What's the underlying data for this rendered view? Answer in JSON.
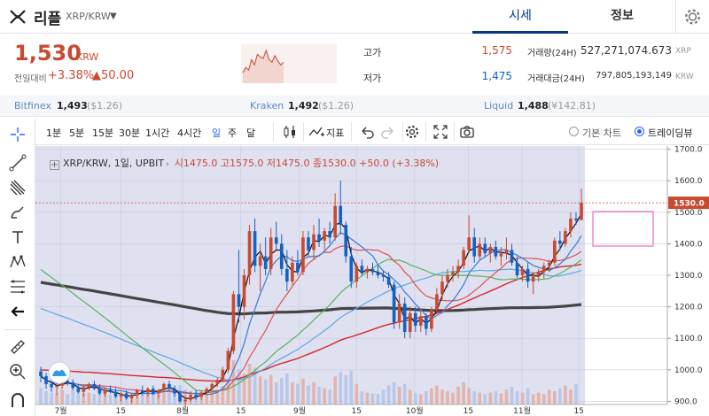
{
  "header": {
    "coin_name": "리플",
    "pair": "XRP/KRW",
    "tabs": [
      {
        "label": "시세",
        "active": true
      },
      {
        "label": "정보",
        "active": false
      }
    ]
  },
  "price": {
    "current": "1,530",
    "unit": "KRW",
    "change_label": "전일대비",
    "change_pct": "+3.38%",
    "change_abs": "▲50.00",
    "mini_chart": [
      1490,
      1510,
      1500,
      1540,
      1520,
      1560,
      1550,
      1545,
      1575,
      1540,
      1530,
      1555,
      1535,
      1520,
      1530
    ]
  },
  "stats": {
    "high_label": "고가",
    "high": "1,575",
    "low_label": "저가",
    "low": "1,475",
    "volume_label": "거래량(24H)",
    "volume": "527,271,074.673",
    "volume_unit": "XRP",
    "amount_label": "거래대금(24H)",
    "amount": "797,805,193,149",
    "amount_unit": "KRW"
  },
  "exchanges": [
    {
      "name": "Bitfinex",
      "price": "1,493",
      "usd": "($1.26)"
    },
    {
      "name": "Kraken",
      "price": "1,492",
      "usd": "($1.26)"
    },
    {
      "name": "Liquid",
      "price": "1,488",
      "usd": "(¥142.81)"
    }
  ],
  "toolbar": {
    "intervals": [
      "1분",
      "5분",
      "15분",
      "30분",
      "1시간",
      "4시간",
      "일",
      "주",
      "달"
    ],
    "selected_interval": "일",
    "indicator_label": "지표",
    "chart_modes": [
      "기본 차트",
      "트레이딩뷰"
    ],
    "selected_mode": "트레이딩뷰"
  },
  "chart_legend": {
    "symbol": "XRP/KRW, 1일, UPBIT",
    "ohlc": "시1475.0 고1575.0 저1475.0 종1530.0 +50.0 (+3.38%)"
  },
  "colors": {
    "up": "#c84a31",
    "down": "#1261c4",
    "accent": "#2962ff",
    "nav_active": "#093687"
  },
  "chart_data": {
    "type": "candlestick",
    "y_ticks": [
      "1700.0",
      "1600.0",
      "1500.0",
      "1400.0",
      "1300.0",
      "1200.0",
      "1100.0",
      "1000.0",
      "900.0"
    ],
    "last_price_label": "1530.0",
    "x_ticks": [
      "7월",
      "15",
      "8월",
      "15",
      "9월",
      "15",
      "10월",
      "15",
      "11월",
      "15"
    ],
    "y_range": [
      890,
      1710
    ],
    "ohlc": [
      [
        995,
        1010,
        960,
        980
      ],
      [
        980,
        990,
        940,
        955
      ],
      [
        955,
        970,
        930,
        945
      ],
      [
        945,
        960,
        920,
        950
      ],
      [
        950,
        975,
        940,
        965
      ],
      [
        965,
        980,
        950,
        960
      ],
      [
        960,
        970,
        935,
        942
      ],
      [
        942,
        955,
        925,
        930
      ],
      [
        930,
        950,
        915,
        945
      ],
      [
        945,
        960,
        935,
        955
      ],
      [
        955,
        965,
        935,
        940
      ],
      [
        940,
        955,
        920,
        925
      ],
      [
        925,
        945,
        915,
        938
      ],
      [
        938,
        950,
        925,
        930
      ],
      [
        930,
        942,
        910,
        915
      ],
      [
        915,
        930,
        900,
        925
      ],
      [
        925,
        935,
        905,
        910
      ],
      [
        910,
        925,
        895,
        920
      ],
      [
        920,
        940,
        910,
        935
      ],
      [
        935,
        950,
        920,
        928
      ],
      [
        928,
        945,
        915,
        940
      ],
      [
        940,
        950,
        920,
        925
      ],
      [
        925,
        940,
        910,
        935
      ],
      [
        935,
        960,
        930,
        955
      ],
      [
        955,
        965,
        935,
        940
      ],
      [
        940,
        950,
        915,
        925
      ],
      [
        925,
        930,
        895,
        900
      ],
      [
        900,
        915,
        880,
        905
      ],
      [
        905,
        930,
        900,
        920
      ],
      [
        920,
        935,
        905,
        915
      ],
      [
        915,
        935,
        905,
        928
      ],
      [
        928,
        945,
        920,
        940
      ],
      [
        940,
        960,
        935,
        955
      ],
      [
        955,
        975,
        945,
        968
      ],
      [
        968,
        1010,
        960,
        1000
      ],
      [
        1000,
        1070,
        990,
        1060
      ],
      [
        1060,
        1250,
        1050,
        1240
      ],
      [
        1240,
        1380,
        1150,
        1200
      ],
      [
        1200,
        1320,
        1160,
        1300
      ],
      [
        1300,
        1460,
        1270,
        1440
      ],
      [
        1440,
        1480,
        1310,
        1330
      ],
      [
        1330,
        1400,
        1250,
        1360
      ],
      [
        1360,
        1420,
        1300,
        1320
      ],
      [
        1320,
        1450,
        1300,
        1420
      ],
      [
        1420,
        1470,
        1380,
        1400
      ],
      [
        1400,
        1430,
        1300,
        1320
      ],
      [
        1320,
        1380,
        1250,
        1280
      ],
      [
        1280,
        1360,
        1270,
        1340
      ],
      [
        1340,
        1380,
        1300,
        1310
      ],
      [
        1310,
        1440,
        1300,
        1420
      ],
      [
        1420,
        1440,
        1360,
        1380
      ],
      [
        1380,
        1460,
        1350,
        1430
      ],
      [
        1430,
        1480,
        1390,
        1410
      ],
      [
        1410,
        1450,
        1380,
        1440
      ],
      [
        1440,
        1470,
        1400,
        1420
      ],
      [
        1420,
        1560,
        1410,
        1520
      ],
      [
        1520,
        1600,
        1430,
        1460
      ],
      [
        1460,
        1470,
        1340,
        1360
      ],
      [
        1360,
        1390,
        1260,
        1280
      ],
      [
        1280,
        1340,
        1260,
        1330
      ],
      [
        1330,
        1350,
        1300,
        1310
      ],
      [
        1310,
        1330,
        1290,
        1320
      ],
      [
        1320,
        1340,
        1300,
        1310
      ],
      [
        1310,
        1330,
        1290,
        1300
      ],
      [
        1300,
        1315,
        1280,
        1295
      ],
      [
        1295,
        1310,
        1260,
        1270
      ],
      [
        1270,
        1280,
        1130,
        1150
      ],
      [
        1150,
        1240,
        1130,
        1210
      ],
      [
        1210,
        1230,
        1100,
        1120
      ],
      [
        1120,
        1200,
        1100,
        1180
      ],
      [
        1180,
        1200,
        1120,
        1140
      ],
      [
        1140,
        1190,
        1120,
        1170
      ],
      [
        1170,
        1180,
        1110,
        1130
      ],
      [
        1130,
        1200,
        1120,
        1190
      ],
      [
        1190,
        1260,
        1180,
        1240
      ],
      [
        1240,
        1300,
        1220,
        1280
      ],
      [
        1280,
        1320,
        1260,
        1300
      ],
      [
        1300,
        1330,
        1280,
        1310
      ],
      [
        1310,
        1350,
        1290,
        1330
      ],
      [
        1330,
        1390,
        1320,
        1380
      ],
      [
        1380,
        1490,
        1370,
        1420
      ],
      [
        1420,
        1450,
        1340,
        1360
      ],
      [
        1360,
        1420,
        1350,
        1400
      ],
      [
        1400,
        1420,
        1360,
        1370
      ],
      [
        1370,
        1400,
        1340,
        1390
      ],
      [
        1390,
        1410,
        1350,
        1360
      ],
      [
        1360,
        1390,
        1330,
        1370
      ],
      [
        1370,
        1420,
        1350,
        1380
      ],
      [
        1380,
        1400,
        1330,
        1340
      ],
      [
        1340,
        1360,
        1290,
        1300
      ],
      [
        1300,
        1330,
        1280,
        1320
      ],
      [
        1320,
        1340,
        1260,
        1280
      ],
      [
        1280,
        1310,
        1240,
        1300
      ],
      [
        1300,
        1320,
        1280,
        1310
      ],
      [
        1310,
        1340,
        1290,
        1330
      ],
      [
        1330,
        1350,
        1310,
        1340
      ],
      [
        1340,
        1420,
        1330,
        1410
      ],
      [
        1410,
        1440,
        1380,
        1400
      ],
      [
        1400,
        1450,
        1390,
        1440
      ],
      [
        1440,
        1500,
        1420,
        1480
      ],
      [
        1480,
        1500,
        1460,
        1475
      ],
      [
        1475,
        1575,
        1475,
        1530
      ]
    ],
    "volume": [
      22,
      18,
      16,
      15,
      20,
      14,
      19,
      17,
      15,
      16,
      14,
      20,
      15,
      13,
      18,
      12,
      16,
      14,
      17,
      15,
      16,
      19,
      14,
      18,
      16,
      22,
      26,
      20,
      18,
      17,
      16,
      15,
      18,
      20,
      25,
      32,
      60,
      48,
      42,
      55,
      50,
      38,
      34,
      40,
      30,
      36,
      42,
      30,
      28,
      35,
      26,
      30,
      24,
      22,
      20,
      38,
      44,
      40,
      46,
      28,
      18,
      16,
      15,
      14,
      20,
      26,
      30,
      24,
      28,
      20,
      16,
      14,
      18,
      22,
      26,
      20,
      18,
      16,
      24,
      30,
      22,
      18,
      16,
      14,
      16,
      18,
      15,
      20,
      24,
      18,
      16,
      22,
      14,
      16,
      14,
      20,
      18,
      22,
      26,
      20,
      28
    ]
  }
}
